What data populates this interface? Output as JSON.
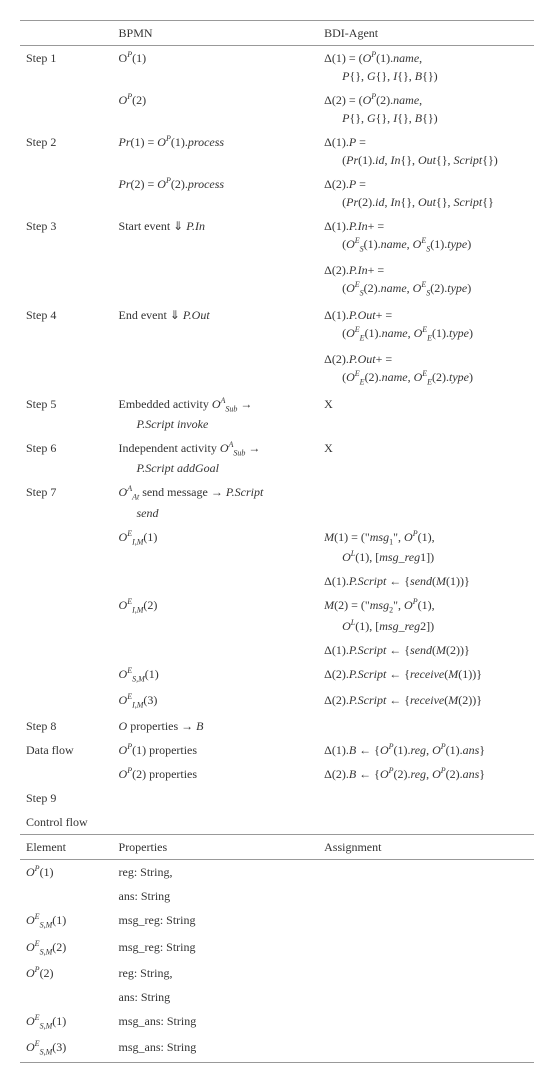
{
  "header": {
    "col1": "",
    "col2": "BPMN",
    "col3": "BDI-Agent"
  },
  "rows": [
    {
      "c1": "Step 1",
      "c2": "O<span class='sup it'>P</span>(1)",
      "c3": "Δ(1) = (<span class='it'>O<span class='sup'>P</span></span>(1).<span class='it'>name</span>,<span class='indent'><span class='it'>P</span>{}, <span class='it'>G</span>{}, <span class='it'>I</span>{}, <span class='it'>B</span>{})</span>"
    },
    {
      "c1": "",
      "c2": "<span class='it'>O<span class='sup'>P</span></span>(2)",
      "c3": "Δ(2) = (<span class='it'>O<span class='sup'>P</span></span>(2).<span class='it'>name</span>,<span class='indent'><span class='it'>P</span>{}, <span class='it'>G</span>{}, <span class='it'>I</span>{}, <span class='it'>B</span>{})</span>"
    },
    {
      "c1": "Step 2",
      "c2": "<span class='it'>Pr</span>(1) = <span class='it'>O<span class='sup'>P</span></span>(1).<span class='it'>process</span>",
      "c3": "Δ(1).<span class='it'>P</span> =<span class='indent'>(<span class='it'>Pr</span>(1).<span class='it'>id</span>, <span class='it'>In</span>{}, <span class='it'>Out</span>{}, <span class='it'>Script</span>{})</span>"
    },
    {
      "c1": "",
      "c2": "<span class='it'>Pr</span>(2) = <span class='it'>O<span class='sup'>P</span></span>(2).<span class='it'>process</span>",
      "c3": "Δ(2).<span class='it'>P</span> =<span class='indent'>(<span class='it'>Pr</span>(2).<span class='it'>id</span>, <span class='it'>In</span>{}, <span class='it'>Out</span>{}, <span class='it'>Script</span>{}</span>"
    },
    {
      "c1": "Step 3",
      "c2": "Start event ⇓ <span class='it'>P.In</span>",
      "c3": "Δ(1).<span class='it'>P.In</span>+ =<span class='indent'>(<span class='it'>O<span class='sup'>E</span><span class='sub'>S</span></span>(1).<span class='it'>name</span>, <span class='it'>O<span class='sup'>E</span><span class='sub'>S</span></span>(1).<span class='it'>type</span>)</span>"
    },
    {
      "c1": "",
      "c2": "",
      "c3": "Δ(2).<span class='it'>P.In</span>+ =<span class='indent'>(<span class='it'>O<span class='sup'>E</span><span class='sub'>S</span></span>(2).<span class='it'>name</span>, <span class='it'>O<span class='sup'>E</span><span class='sub'>S</span></span>(2).<span class='it'>type</span>)</span>"
    },
    {
      "c1": "Step 4",
      "c2": "End event ⇓ <span class='it'>P.Out</span>",
      "c3": "Δ(1).<span class='it'>P.Out</span>+ =<span class='indent'>(<span class='it'>O<span class='sup'>E</span><span class='sub'>E</span></span>(1).<span class='it'>name</span>, <span class='it'>O<span class='sup'>E</span><span class='sub'>E</span></span>(1).<span class='it'>type</span>)</span>"
    },
    {
      "c1": "",
      "c2": "",
      "c3": "Δ(2).<span class='it'>P.Out</span>+ =<span class='indent'>(<span class='it'>O<span class='sup'>E</span><span class='sub'>E</span></span>(2).<span class='it'>name</span>, <span class='it'>O<span class='sup'>E</span><span class='sub'>E</span></span>(2).<span class='it'>type</span>)</span>"
    },
    {
      "c1": "Step 5",
      "c2": "Embedded activity <span class='it'>O<span class='sup'>A</span><span class='sub'>Sub</span></span> →<span class='indent'><span class='it'>P.Script invoke</span></span>",
      "c3": "X"
    },
    {
      "c1": "Step 6",
      "c2": "Independent activity <span class='it'>O<span class='sup'>A</span><span class='sub'>Sub</span></span> →<span class='indent'><span class='it'>P.Script addGoal</span></span>",
      "c3": "X"
    },
    {
      "c1": "Step 7",
      "c2": "<span class='it'>O<span class='sup'>A</span><span class='sub'>At</span></span> send message → <span class='it'>P.Script</span><span class='indent'><span class='it'>send</span></span>",
      "c3": ""
    },
    {
      "c1": "",
      "c2": "<span class='it'>O<span class='sup'>E</span><span class='sub'>I,M</span></span>(1)",
      "c3": "<span class='it'>M</span>(1) = (\"<span class='it'>msg</span><span class='sub'>1</span>\", <span class='it'>O<span class='sup'>P</span></span>(1),<span class='indent'><span class='it'>O<span class='sup'>L</span></span>(1), [<span class='it'>msg_reg</span>1])</span>"
    },
    {
      "c1": "",
      "c2": "",
      "c3": "Δ(1).<span class='it'>P.Script</span> ← {<span class='it'>send</span>(<span class='it'>M</span>(1))}"
    },
    {
      "c1": "",
      "c2": "<span class='it'>O<span class='sup'>E</span><span class='sub'>I,M</span></span>(2)",
      "c3": "<span class='it'>M</span>(2) = (\"<span class='it'>msg</span><span class='sub'>2</span>\", <span class='it'>O<span class='sup'>P</span></span>(1),<span class='indent'><span class='it'>O<span class='sup'>L</span></span>(1), [<span class='it'>msg_reg</span>2])</span>"
    },
    {
      "c1": "",
      "c2": "",
      "c3": "Δ(1).<span class='it'>P.Script</span> ← {<span class='it'>send</span>(<span class='it'>M</span>(2))}"
    },
    {
      "c1": "",
      "c2": "<span class='it'>O<span class='sup'>E</span><span class='sub'>S,M</span></span>(1)",
      "c3": "Δ(2).<span class='it'>P.Script</span> ← {<span class='it'>receive</span>(<span class='it'>M</span>(1))}"
    },
    {
      "c1": "",
      "c2": "<span class='it'>O<span class='sup'>E</span><span class='sub'>I,M</span></span>(3)",
      "c3": "Δ(2).<span class='it'>P.Script</span> ← {<span class='it'>receive</span>(<span class='it'>M</span>(2))}"
    },
    {
      "c1": "Step 8",
      "c2": "<span class='it'>O</span> properties → <span class='it'>B</span>",
      "c3": ""
    },
    {
      "c1": "Data flow",
      "c2": "<span class='it'>O<span class='sup'>P</span></span>(1) properties",
      "c3": "Δ(1).<span class='it'>B</span> ← {<span class='it'>O<span class='sup'>P</span></span>(1).<span class='it'>reg</span>, <span class='it'>O<span class='sup'>P</span></span>(1).<span class='it'>ans</span>}"
    },
    {
      "c1": "",
      "c2": "<span class='it'>O<span class='sup'>P</span></span>(2) properties",
      "c3": "Δ(2).<span class='it'>B</span> ← {<span class='it'>O<span class='sup'>P</span></span>(2).<span class='it'>reg</span>, <span class='it'>O<span class='sup'>P</span></span>(2).<span class='it'>ans</span>}"
    },
    {
      "c1": "Step 9",
      "c2": "",
      "c3": ""
    },
    {
      "c1": "Control flow",
      "c2": "",
      "c3": ""
    }
  ],
  "header2": {
    "col1": "Element",
    "col2": "Properties",
    "col3": "Assignment"
  },
  "rows2": [
    {
      "c1": "<span class='it'>O<span class='sup'>P</span></span>(1)",
      "c2": "reg: String,",
      "c3": ""
    },
    {
      "c1": "",
      "c2": "ans: String",
      "c3": ""
    },
    {
      "c1": "<span class='it'>O<span class='sup'>E</span><span class='sub'>S,M</span></span>(1)",
      "c2": "msg_reg: String",
      "c3": ""
    },
    {
      "c1": "<span class='it'>O<span class='sup'>E</span><span class='sub'>S,M</span></span>(2)",
      "c2": "msg_reg: String",
      "c3": ""
    },
    {
      "c1": "<span class='it'>O<span class='sup'>P</span></span>(2)",
      "c2": "reg: String,",
      "c3": ""
    },
    {
      "c1": "",
      "c2": "ans: String",
      "c3": ""
    },
    {
      "c1": "<span class='it'>O<span class='sup'>E</span><span class='sub'>S,M</span></span>(1)",
      "c2": "msg_ans: String",
      "c3": ""
    },
    {
      "c1": "<span class='it'>O<span class='sup'>E</span><span class='sub'>S,M</span></span>(3)",
      "c2": "msg_ans: String",
      "c3": ""
    }
  ],
  "style": {
    "font_family": "Times New Roman",
    "font_size_pt": 9,
    "text_color": "#333333",
    "rule_color": "#999999",
    "background": "#ffffff"
  }
}
